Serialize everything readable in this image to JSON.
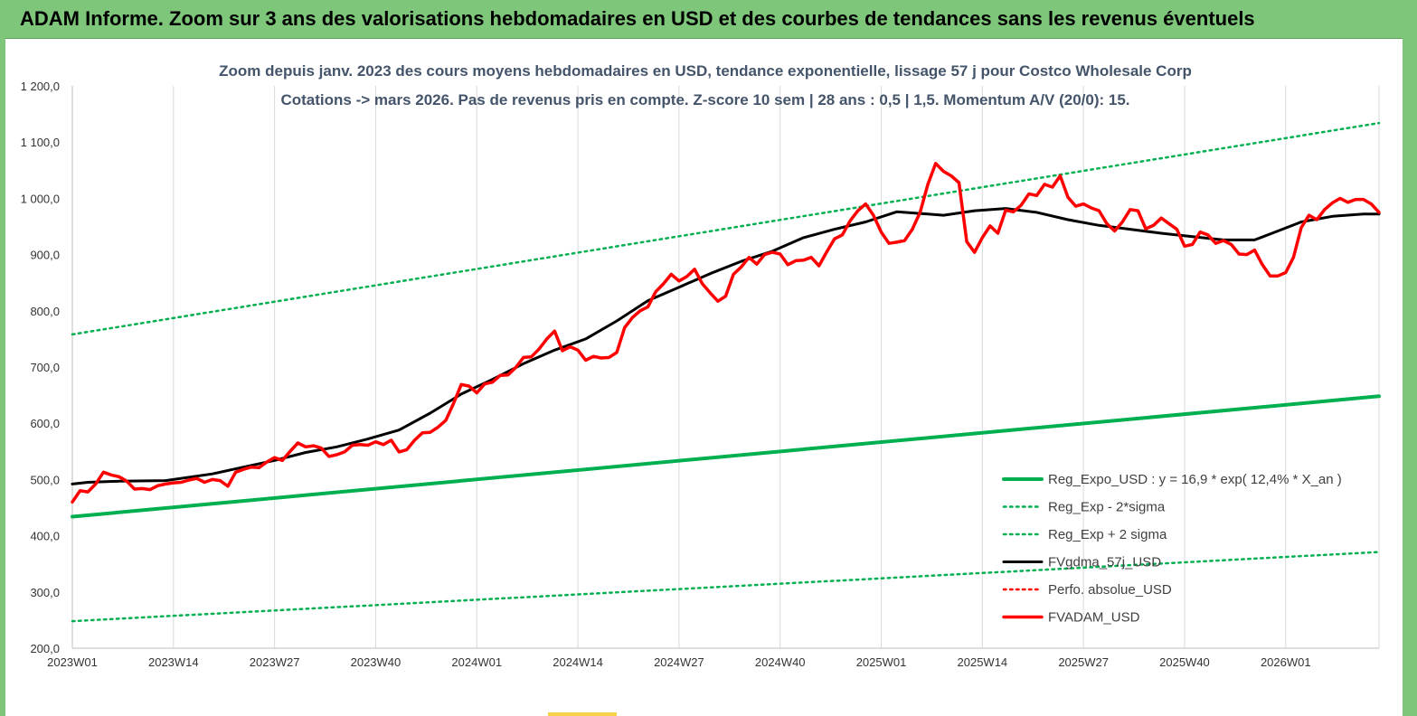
{
  "banner": {
    "title": "ADAM Informe. Zoom sur 3 ans des valorisations hebdomadaires en USD et des courbes de tendances sans les revenus éventuels",
    "color": "#7ec77a"
  },
  "chart_data": {
    "type": "line",
    "title_line1": "Zoom depuis janv. 2023 des cours moyens hebdomadaires en USD, tendance exponentielle, lissage 57 j pour Costco Wholesale Corp",
    "title_line2": "Cotations -> mars 2026. Pas de revenus pris en compte. Z-score 10 sem | 28 ans : 0,5 | 1,5. Momentum A/V (20/0): 15.",
    "ylim": [
      200,
      1200
    ],
    "y_ticks": [
      "200,0",
      "300,0",
      "400,0",
      "500,0",
      "600,0",
      "700,0",
      "800,0",
      "900,0",
      "1 000,0",
      "1 100,0",
      "1 200,0"
    ],
    "x_week_range": [
      0,
      168
    ],
    "x_ticks": [
      {
        "week": 0,
        "label": "2023W01"
      },
      {
        "week": 13,
        "label": "2023W14"
      },
      {
        "week": 26,
        "label": "2023W27"
      },
      {
        "week": 39,
        "label": "2023W40"
      },
      {
        "week": 52,
        "label": "2024W01"
      },
      {
        "week": 65,
        "label": "2024W14"
      },
      {
        "week": 78,
        "label": "2024W27"
      },
      {
        "week": 91,
        "label": "2024W40"
      },
      {
        "week": 104,
        "label": "2025W01"
      },
      {
        "week": 117,
        "label": "2025W14"
      },
      {
        "week": 130,
        "label": "2025W27"
      },
      {
        "week": 143,
        "label": "2025W40"
      },
      {
        "week": 156,
        "label": "2026W01"
      }
    ],
    "grid": "vertical",
    "legend_position": "bottom-right",
    "series": [
      {
        "name": "Reg_Expo_USD : y = 16,9 * exp( 12,4% * X_an )",
        "color": "#00b050",
        "style": "solid",
        "width": 4,
        "x": [
          0,
          168
        ],
        "y": [
          434,
          648
        ]
      },
      {
        "name": "Reg_Exp - 2*sigma",
        "color": "#00b050",
        "style": "dotted",
        "width": 2.5,
        "x": [
          0,
          168
        ],
        "y": [
          248,
          371
        ]
      },
      {
        "name": "Reg_Exp + 2 sigma",
        "color": "#00b050",
        "style": "dotted",
        "width": 2.5,
        "x": [
          0,
          168
        ],
        "y": [
          758,
          1134
        ]
      },
      {
        "name": "FVgdma_57j_USD",
        "color": "#000000",
        "style": "solid",
        "width": 3,
        "x": [
          0,
          2,
          6,
          12,
          18,
          22,
          26,
          30,
          34,
          38,
          42,
          46,
          50,
          54,
          58,
          62,
          66,
          70,
          74,
          78,
          82,
          86,
          90,
          94,
          98,
          102,
          106,
          110,
          112,
          116,
          120,
          124,
          128,
          132,
          136,
          140,
          144,
          148,
          152,
          155,
          158,
          162,
          166,
          168
        ],
        "y": [
          492,
          495,
          497,
          498,
          510,
          522,
          534,
          548,
          558,
          572,
          588,
          618,
          652,
          678,
          706,
          730,
          750,
          782,
          818,
          842,
          866,
          888,
          906,
          930,
          945,
          958,
          976,
          972,
          970,
          978,
          982,
          975,
          962,
          952,
          945,
          938,
          932,
          926,
          926,
          942,
          958,
          968,
          972,
          972
        ]
      },
      {
        "name": "Perfo. absolue_USD",
        "color": "#ff0000",
        "style": "dotted",
        "width": 2.5,
        "x": [],
        "y": []
      },
      {
        "name": "FVADAM_USD",
        "color": "#ff0000",
        "style": "solid",
        "width": 3.5,
        "x": [
          0,
          1,
          2,
          3,
          4,
          5,
          6,
          7,
          8,
          9,
          10,
          11,
          12,
          13,
          14,
          15,
          16,
          17,
          18,
          19,
          20,
          21,
          22,
          23,
          24,
          25,
          26,
          27,
          28,
          29,
          30,
          31,
          32,
          33,
          34,
          35,
          36,
          37,
          38,
          39,
          40,
          41,
          42,
          43,
          44,
          45,
          46,
          47,
          48,
          49,
          50,
          51,
          52,
          53,
          54,
          55,
          56,
          57,
          58,
          59,
          60,
          61,
          62,
          63,
          64,
          65,
          66,
          67,
          68,
          69,
          70,
          71,
          72,
          73,
          74,
          75,
          76,
          77,
          78,
          79,
          80,
          81,
          82,
          83,
          84,
          85,
          86,
          87,
          88,
          89,
          90,
          91,
          92,
          93,
          94,
          95,
          96,
          97,
          98,
          99,
          100,
          101,
          102,
          103,
          104,
          105,
          106,
          107,
          108,
          109,
          110,
          111,
          112,
          113,
          114,
          115,
          116,
          117,
          118,
          119,
          120,
          121,
          122,
          123,
          124,
          125,
          126,
          127,
          128,
          129,
          130,
          131,
          132,
          133,
          134,
          135,
          136,
          137,
          138,
          139,
          140,
          141,
          142,
          143,
          144,
          145,
          146,
          147,
          148,
          149,
          150,
          151,
          152,
          153,
          154,
          155,
          156,
          157,
          158,
          159,
          160,
          161,
          162,
          163,
          164,
          165,
          166,
          167,
          168
        ],
        "y": [
          460,
          480,
          478,
          492,
          513,
          508,
          505,
          497,
          483,
          484,
          482,
          489,
          492,
          494,
          495,
          499,
          502,
          495,
          500,
          498,
          488,
          513,
          518,
          522,
          521,
          531,
          539,
          534,
          550,
          565,
          558,
          560,
          556,
          541,
          544,
          549,
          561,
          562,
          561,
          567,
          562,
          570,
          549,
          553,
          570,
          583,
          584,
          593,
          605,
          635,
          669,
          666,
          654,
          670,
          673,
          685,
          686,
          699,
          717,
          718,
          732,
          750,
          764,
          729,
          736,
          730,
          712,
          719,
          716,
          717,
          726,
          770,
          788,
          800,
          807,
          834,
          848,
          865,
          853,
          861,
          874,
          848,
          832,
          817,
          826,
          865,
          878,
          895,
          883,
          900,
          904,
          901,
          882,
          889,
          890,
          895,
          880,
          905,
          928,
          935,
          960,
          978,
          990,
          970,
          940,
          920,
          922,
          925,
          945,
          975,
          1025,
          1062,
          1048,
          1040,
          1028,
          923,
          904,
          930,
          951,
          938,
          979,
          976,
          988,
          1008,
          1005,
          1025,
          1020,
          1040,
          1002,
          986,
          990,
          983,
          978,
          955,
          942,
          958,
          980,
          978,
          946,
          952,
          965,
          955,
          945,
          915,
          918,
          940,
          935,
          920,
          925,
          918,
          901,
          900,
          908,
          882,
          862,
          862,
          868,
          895,
          948,
          970,
          962,
          980,
          992,
          1000,
          993,
          998,
          998,
          990,
          975
        ]
      }
    ]
  }
}
